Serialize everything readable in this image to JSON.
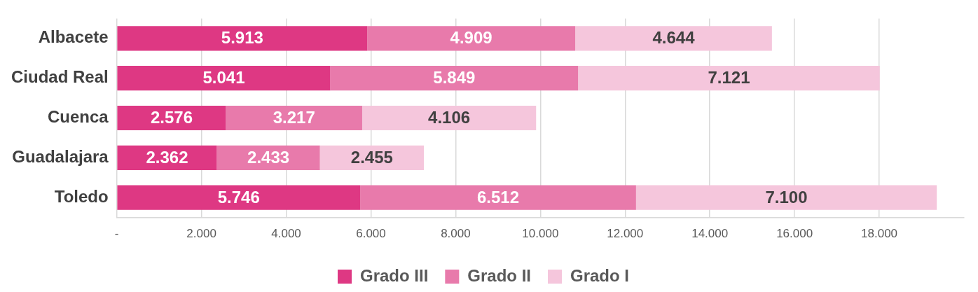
{
  "chart_data": {
    "type": "bar",
    "orientation": "horizontal",
    "stacked": true,
    "grid": "x",
    "legend": "bottom",
    "categories": [
      "Albacete",
      "Ciudad Real",
      "Cuenca",
      "Guadalajara",
      "Toledo"
    ],
    "series": [
      {
        "name": "Grado III",
        "color": "#de3883",
        "values": [
          5913,
          5041,
          2576,
          2362,
          5746
        ],
        "value_labels": [
          "5.913",
          "5.041",
          "2.576",
          "2.362",
          "5.746"
        ]
      },
      {
        "name": "Grado II",
        "color": "#e87aab",
        "values": [
          4909,
          5849,
          3217,
          2433,
          6512
        ],
        "value_labels": [
          "4.909",
          "5.849",
          "3.217",
          "2.433",
          "6.512"
        ]
      },
      {
        "name": "Grado I",
        "color": "#f5c6dc",
        "values": [
          4644,
          7121,
          4106,
          2455,
          7100
        ],
        "value_labels": [
          "4.644",
          "7.121",
          "4.106",
          "2.455",
          "7.100"
        ]
      }
    ],
    "xlim": [
      0,
      20000
    ],
    "xticks": [
      {
        "value": 0,
        "label": "-"
      },
      {
        "value": 2000,
        "label": "2.000"
      },
      {
        "value": 4000,
        "label": "4.000"
      },
      {
        "value": 6000,
        "label": "6.000"
      },
      {
        "value": 8000,
        "label": "8.000"
      },
      {
        "value": 10000,
        "label": "10.000"
      },
      {
        "value": 12000,
        "label": "12.000"
      },
      {
        "value": 14000,
        "label": "14.000"
      },
      {
        "value": 16000,
        "label": "16.000"
      },
      {
        "value": 18000,
        "label": "18.000"
      }
    ]
  }
}
